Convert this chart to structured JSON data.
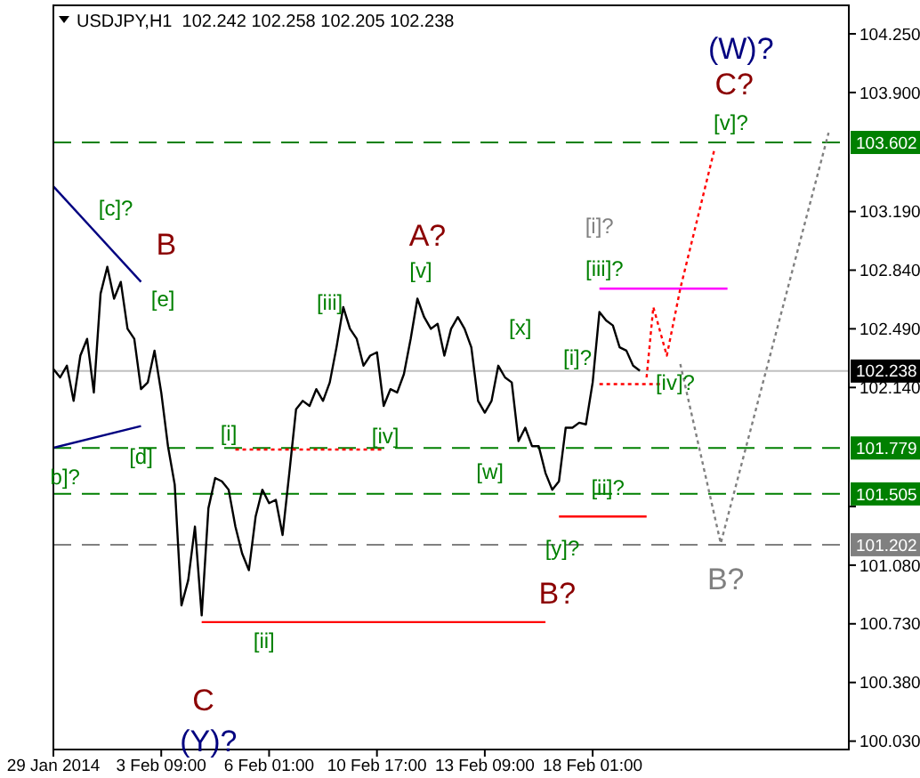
{
  "chart_data": {
    "type": "line",
    "title": "USDJPY,H1  102.242 102.258 102.205 102.238",
    "marker": "none",
    "line_style": "solid",
    "categories": [
      "29 Jan 2014",
      null,
      null,
      null,
      null,
      null,
      null,
      null,
      null,
      null,
      null,
      null,
      null,
      null,
      null,
      null,
      "3 Feb 09:00",
      null,
      null,
      null,
      null,
      null,
      null,
      null,
      null,
      null,
      null,
      null,
      null,
      null,
      null,
      null,
      "6 Feb 01:00",
      null,
      null,
      null,
      null,
      null,
      null,
      null,
      null,
      null,
      null,
      null,
      null,
      null,
      null,
      null,
      "10 Feb 17:00",
      null,
      null,
      null,
      null,
      null,
      null,
      null,
      null,
      null,
      null,
      null,
      null,
      null,
      null,
      null,
      "13 Feb 09:00",
      null,
      null,
      null,
      null,
      null,
      null,
      null,
      null,
      null,
      null,
      null,
      null,
      null,
      null,
      null,
      "18 Feb 01:00",
      null,
      null,
      null,
      null,
      null,
      null,
      null,
      null,
      null,
      null,
      null,
      null,
      null,
      null,
      null,
      null,
      null,
      null,
      null,
      null,
      null,
      null,
      null,
      null,
      null,
      null,
      null,
      null,
      null,
      null,
      null,
      null,
      null,
      null,
      null,
      null,
      null,
      null
    ],
    "ylim": [
      99.98,
      104.42
    ],
    "yticks": [
      {
        "value": 100.03,
        "label": "100.030"
      },
      {
        "value": 100.38,
        "label": "100.380"
      },
      {
        "value": 100.73,
        "label": "100.730"
      },
      {
        "value": 101.08,
        "label": "101.080"
      },
      {
        "value": 101.43,
        "label": null
      },
      {
        "value": 102.14,
        "label": "102.140"
      },
      {
        "value": 102.49,
        "label": "102.490"
      },
      {
        "value": 102.84,
        "label": "102.840"
      },
      {
        "value": 103.19,
        "label": "103.190"
      },
      {
        "value": 103.9,
        "label": "103.900"
      },
      {
        "value": 104.25,
        "label": "104.250"
      }
    ],
    "series": [
      {
        "color": "#000000",
        "values": [
          102.25,
          102.2,
          102.27,
          102.06,
          102.33,
          102.43,
          102.11,
          102.7,
          102.86,
          102.67,
          102.77,
          102.49,
          102.43,
          102.13,
          102.17,
          102.36,
          102.11,
          101.79,
          101.56,
          100.84,
          100.99,
          101.31,
          100.78,
          101.42,
          101.6,
          101.58,
          101.53,
          101.31,
          101.15,
          101.05,
          101.37,
          101.53,
          101.45,
          101.47,
          101.26,
          101.63,
          102.01,
          102.06,
          102.03,
          102.13,
          102.06,
          102.17,
          102.38,
          102.62,
          102.49,
          102.43,
          102.27,
          102.33,
          102.35,
          102.03,
          102.13,
          102.11,
          102.22,
          102.43,
          102.67,
          102.56,
          102.49,
          102.52,
          102.33,
          102.49,
          102.56,
          102.49,
          102.38,
          102.06,
          101.99,
          102.06,
          102.27,
          102.2,
          102.17,
          101.82,
          101.9,
          101.79,
          101.79,
          101.63,
          101.53,
          101.58,
          101.9,
          101.9,
          101.93,
          101.92,
          102.17,
          102.59,
          102.54,
          102.51,
          102.38,
          102.36,
          102.27,
          102.24,
          null,
          null,
          null,
          null,
          null,
          null,
          null,
          null,
          null,
          null,
          null,
          null,
          null,
          null,
          null,
          null,
          null,
          null,
          null,
          null,
          null,
          null,
          null,
          null,
          null,
          null,
          null,
          null,
          null,
          null,
          null
        ]
      },
      {
        "color": "#000080",
        "values": [
          103.34,
          null,
          null,
          null,
          null,
          null,
          null,
          null,
          null,
          null,
          null,
          null,
          null,
          102.77,
          null,
          null,
          null,
          null,
          null,
          null,
          null,
          null,
          null,
          null,
          null,
          null,
          null,
          null,
          null,
          null,
          null,
          null,
          null,
          null,
          null,
          null,
          null,
          null,
          null,
          null,
          null,
          null,
          null,
          null,
          null,
          null,
          null,
          null,
          null,
          null,
          null,
          null,
          null,
          null,
          null,
          null,
          null,
          null,
          null,
          null,
          null,
          null,
          null,
          null,
          null,
          null,
          null,
          null,
          null,
          null,
          null,
          null,
          null,
          null,
          null,
          null,
          null,
          null,
          null,
          null,
          null,
          null,
          null,
          null,
          null,
          null,
          null,
          null,
          null,
          null,
          null,
          null,
          null,
          null,
          null,
          null,
          null,
          null,
          null,
          null,
          null,
          null,
          null,
          null,
          null,
          null,
          null,
          null,
          null,
          null,
          null,
          null,
          null,
          null,
          null,
          null,
          null,
          null,
          null
        ]
      },
      {
        "color": "#000080",
        "values": [
          101.78,
          null,
          null,
          null,
          null,
          null,
          null,
          null,
          null,
          null,
          null,
          null,
          null,
          101.91,
          null,
          null,
          null,
          null,
          null,
          null,
          null,
          null,
          null,
          null,
          null,
          null,
          null,
          null,
          null,
          null,
          null,
          null,
          null,
          null,
          null,
          null,
          null,
          null,
          null,
          null,
          null,
          null,
          null,
          null,
          null,
          null,
          null,
          null,
          null,
          null,
          null,
          null,
          null,
          null,
          null,
          null,
          null,
          null,
          null,
          null,
          null,
          null,
          null,
          null,
          null,
          null,
          null,
          null,
          null,
          null,
          null,
          null,
          null,
          null,
          null,
          null,
          null,
          null,
          null,
          null,
          null,
          null,
          null,
          null,
          null,
          null,
          null,
          null,
          null,
          null,
          null,
          null,
          null,
          null,
          null,
          null,
          null,
          null,
          null,
          null,
          null,
          null,
          null,
          null,
          null,
          null,
          null,
          null,
          null,
          null,
          null,
          null,
          null,
          null,
          null,
          null,
          null,
          null,
          null
        ]
      },
      {
        "color": "#ff0000",
        "values": [
          null,
          null,
          null,
          null,
          null,
          null,
          null,
          null,
          null,
          null,
          null,
          null,
          null,
          null,
          null,
          null,
          null,
          null,
          null,
          null,
          null,
          null,
          100.74,
          null,
          null,
          null,
          null,
          null,
          null,
          null,
          null,
          null,
          null,
          null,
          null,
          null,
          null,
          null,
          null,
          null,
          null,
          null,
          null,
          null,
          null,
          null,
          null,
          null,
          null,
          null,
          null,
          null,
          null,
          null,
          null,
          null,
          null,
          null,
          null,
          null,
          null,
          null,
          null,
          null,
          null,
          null,
          null,
          null,
          null,
          null,
          null,
          null,
          null,
          100.74,
          null,
          null,
          null,
          null,
          null,
          null,
          null,
          null,
          null,
          null,
          null,
          null,
          null,
          null,
          null,
          null,
          null,
          null,
          null,
          null,
          null,
          null,
          null,
          null,
          null,
          null,
          null,
          null,
          null,
          null,
          null,
          null,
          null,
          null,
          null,
          null,
          null,
          null,
          null,
          null,
          null,
          null,
          null,
          null,
          null
        ]
      },
      {
        "color": "#ff0000",
        "values": [
          null,
          null,
          null,
          null,
          null,
          null,
          null,
          null,
          null,
          null,
          null,
          null,
          null,
          null,
          null,
          null,
          null,
          null,
          null,
          null,
          null,
          null,
          null,
          null,
          null,
          null,
          null,
          null,
          null,
          null,
          null,
          null,
          null,
          null,
          null,
          null,
          null,
          null,
          null,
          null,
          null,
          null,
          null,
          null,
          null,
          null,
          null,
          null,
          null,
          null,
          null,
          null,
          null,
          null,
          null,
          null,
          null,
          null,
          null,
          null,
          null,
          null,
          null,
          null,
          null,
          null,
          null,
          null,
          null,
          null,
          null,
          null,
          null,
          null,
          null,
          101.37,
          null,
          null,
          null,
          null,
          null,
          null,
          null,
          null,
          null,
          null,
          null,
          null,
          101.37,
          null,
          null,
          null,
          null,
          null,
          null,
          null,
          null,
          null,
          null,
          null,
          null,
          null,
          null,
          null,
          null,
          null,
          null,
          null,
          null,
          null,
          null,
          null,
          null,
          null,
          null,
          null,
          null,
          null,
          null
        ]
      },
      {
        "color": "#ff00ff",
        "values": [
          null,
          null,
          null,
          null,
          null,
          null,
          null,
          null,
          null,
          null,
          null,
          null,
          null,
          null,
          null,
          null,
          null,
          null,
          null,
          null,
          null,
          null,
          null,
          null,
          null,
          null,
          null,
          null,
          null,
          null,
          null,
          null,
          null,
          null,
          null,
          null,
          null,
          null,
          null,
          null,
          null,
          null,
          null,
          null,
          null,
          null,
          null,
          null,
          null,
          null,
          null,
          null,
          null,
          null,
          null,
          null,
          null,
          null,
          null,
          null,
          null,
          null,
          null,
          null,
          null,
          null,
          null,
          null,
          null,
          null,
          null,
          null,
          null,
          null,
          null,
          null,
          null,
          null,
          null,
          null,
          null,
          102.73,
          null,
          null,
          null,
          null,
          null,
          null,
          null,
          null,
          null,
          null,
          null,
          null,
          null,
          null,
          null,
          null,
          null,
          null,
          102.73,
          null,
          null,
          null,
          null,
          null,
          null,
          null,
          null,
          null,
          null,
          null,
          null,
          null,
          null,
          null,
          null,
          null,
          null
        ]
      },
      {
        "color": "#ff0000",
        "line_style": "dotted",
        "values": [
          null,
          null,
          null,
          null,
          null,
          null,
          null,
          null,
          null,
          null,
          null,
          null,
          null,
          null,
          null,
          null,
          null,
          null,
          null,
          null,
          null,
          null,
          null,
          null,
          null,
          null,
          null,
          101.77,
          null,
          null,
          null,
          null,
          null,
          null,
          null,
          null,
          null,
          null,
          null,
          null,
          null,
          null,
          null,
          null,
          null,
          null,
          null,
          null,
          null,
          101.77,
          null,
          null,
          null,
          null,
          null,
          null,
          null,
          null,
          null,
          null,
          null,
          null,
          null,
          null,
          null,
          null,
          null,
          null,
          null,
          null,
          null,
          null,
          null,
          null,
          null,
          null,
          null,
          null,
          null,
          null,
          null,
          null,
          null,
          null,
          null,
          null,
          null,
          null,
          null,
          null,
          null,
          null,
          null,
          null,
          null,
          null,
          null,
          null,
          null,
          null,
          null,
          null,
          null,
          null,
          null,
          null,
          null,
          null,
          null,
          null,
          null,
          null,
          null,
          null,
          null,
          null,
          null,
          null,
          null
        ]
      },
      {
        "color": "#ff0000",
        "line_style": "dotted",
        "values": [
          null,
          null,
          null,
          null,
          null,
          null,
          null,
          null,
          null,
          null,
          null,
          null,
          null,
          null,
          null,
          null,
          null,
          null,
          null,
          null,
          null,
          null,
          null,
          null,
          null,
          null,
          null,
          null,
          null,
          null,
          null,
          null,
          null,
          null,
          null,
          null,
          null,
          null,
          null,
          null,
          null,
          null,
          null,
          null,
          null,
          null,
          null,
          null,
          null,
          null,
          null,
          null,
          null,
          null,
          null,
          null,
          null,
          null,
          null,
          null,
          null,
          null,
          null,
          null,
          null,
          null,
          null,
          null,
          null,
          null,
          null,
          null,
          null,
          null,
          null,
          null,
          null,
          null,
          null,
          null,
          null,
          102.16,
          null,
          null,
          null,
          null,
          null,
          null,
          null,
          null,
          102.16,
          null,
          null,
          null,
          null,
          null,
          null,
          null,
          null,
          null,
          null,
          null,
          null,
          null,
          null,
          null,
          null,
          null,
          null,
          null,
          null,
          null,
          null,
          null,
          null,
          null,
          null,
          null,
          null
        ]
      },
      {
        "color": "#ff0000",
        "line_style": "dotted",
        "values": [
          null,
          null,
          null,
          null,
          null,
          null,
          null,
          null,
          null,
          null,
          null,
          null,
          null,
          null,
          null,
          null,
          null,
          null,
          null,
          null,
          null,
          null,
          null,
          null,
          null,
          null,
          null,
          null,
          null,
          null,
          null,
          null,
          null,
          null,
          null,
          null,
          null,
          null,
          null,
          null,
          null,
          null,
          null,
          null,
          null,
          null,
          null,
          null,
          null,
          null,
          null,
          null,
          null,
          null,
          null,
          null,
          null,
          null,
          null,
          null,
          null,
          null,
          null,
          null,
          null,
          null,
          null,
          null,
          null,
          null,
          null,
          null,
          null,
          null,
          null,
          null,
          null,
          null,
          null,
          null,
          null,
          null,
          null,
          null,
          null,
          null,
          null,
          null,
          102.2,
          102.62,
          null,
          102.33,
          null,
          102.73,
          null,
          null,
          null,
          null,
          103.55,
          null,
          null,
          null,
          null,
          null,
          null,
          null,
          null,
          null,
          null,
          null,
          null,
          null,
          null,
          null,
          null,
          null,
          null,
          null,
          null
        ]
      },
      {
        "color": "#808080",
        "line_style": "dotted",
        "values": [
          null,
          null,
          null,
          null,
          null,
          null,
          null,
          null,
          null,
          null,
          null,
          null,
          null,
          null,
          null,
          null,
          null,
          null,
          null,
          null,
          null,
          null,
          null,
          null,
          null,
          null,
          null,
          null,
          null,
          null,
          null,
          null,
          null,
          null,
          null,
          null,
          null,
          null,
          null,
          null,
          null,
          null,
          null,
          null,
          null,
          null,
          null,
          null,
          null,
          null,
          null,
          null,
          null,
          null,
          null,
          null,
          null,
          null,
          null,
          null,
          null,
          null,
          null,
          null,
          null,
          null,
          null,
          null,
          null,
          null,
          null,
          null,
          null,
          null,
          null,
          null,
          null,
          null,
          null,
          null,
          null,
          null,
          null,
          null,
          null,
          null,
          null,
          null,
          null,
          null,
          null,
          null,
          null,
          102.28,
          null,
          null,
          null,
          null,
          null,
          101.21,
          null,
          null,
          null,
          null,
          null,
          null,
          null,
          null,
          null,
          null,
          null,
          null,
          null,
          null,
          null,
          103.66,
          null,
          null,
          null
        ]
      }
    ],
    "ref_lines": [
      {
        "axis": "y",
        "value": 103.602,
        "label": "103.602",
        "color": "#008000",
        "line_style": "dashed"
      },
      {
        "axis": "y",
        "value": 102.238,
        "label": "102.238",
        "color": "#c0c0c0",
        "line_style": "solid"
      },
      {
        "axis": "y",
        "value": 101.779,
        "label": "101.779",
        "color": "#008000",
        "line_style": "dashed"
      },
      {
        "axis": "y",
        "value": 101.505,
        "label": "101.505",
        "color": "#008000",
        "line_style": "dashed"
      },
      {
        "axis": "y",
        "value": 101.202,
        "label": "101.202",
        "color": "#808080",
        "line_style": "dashed"
      }
    ],
    "annotations": [
      "[c]?",
      "B",
      "[e]",
      {
        "text": "[d]",
        "y": 101.78
      },
      "b]?",
      {
        "text": "[i]",
        "y": 101.77
      },
      "[ii]",
      "C",
      "(Y)?",
      "[iii]",
      "[iv]",
      "A?",
      "[v]",
      "[x]",
      "[w]",
      "[y]?",
      "B?",
      "[i]?",
      "[i]?",
      {
        "text": "[iii]?",
        "y": 102.73
      },
      "[ii]?",
      "[iv]?",
      "(W)?",
      "C?",
      "[v]?",
      "B?"
    ]
  }
}
